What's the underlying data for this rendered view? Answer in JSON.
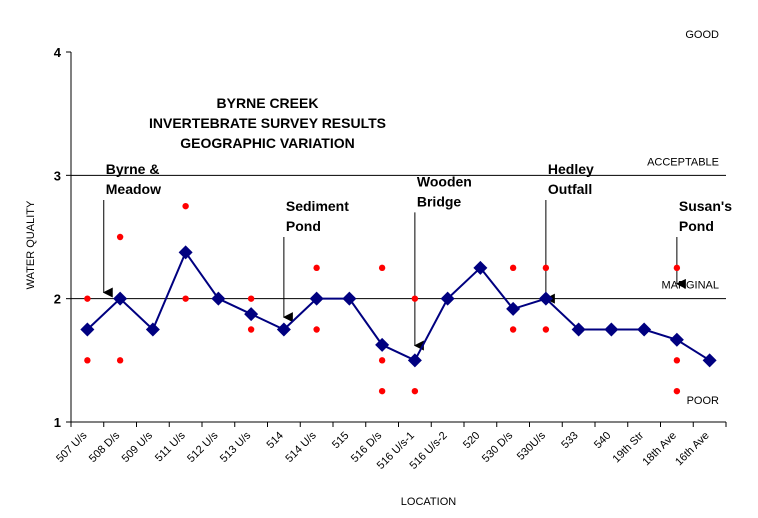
{
  "chart_data": {
    "type": "line",
    "title_lines": [
      "BYRNE CREEK",
      "INVERTEBRATE SURVEY RESULTS",
      "GEOGRAPHIC VARIATION"
    ],
    "xlabel": "LOCATION",
    "ylabel": "WATER QUALITY",
    "ylim": [
      1,
      4
    ],
    "yticks": [
      "1",
      "2",
      "3",
      "4"
    ],
    "grid": "horizontal lines at 2 and 3",
    "categories": [
      "507 U/s",
      "508 D/s",
      "509 U/s",
      "511 U/s",
      "512 U/s",
      "513 U/s",
      "514",
      "514 U/s",
      "515",
      "516 D/s",
      "516 U/s-1",
      "516 U/s-2",
      "520",
      "530 D/s",
      "530U/s",
      "533",
      "540",
      "19th Str",
      "18th Ave",
      "16th Ave"
    ],
    "series": [
      {
        "values": [
          1.75,
          2.0,
          1.75,
          2.375,
          2.0,
          1.875,
          1.75,
          2.0,
          2.0,
          1.625,
          1.5,
          2.0,
          2.25,
          1.917,
          2.0,
          1.75,
          1.75,
          1.75,
          1.667,
          1.5
        ],
        "color": "#000080",
        "marker": "diamond"
      },
      {
        "color": "#ff0000",
        "marker": "dot",
        "points": [
          [
            0,
            2.0
          ],
          [
            0,
            1.5
          ],
          [
            1,
            2.5
          ],
          [
            1,
            1.5
          ],
          [
            3,
            2.75
          ],
          [
            3,
            2.0
          ],
          [
            5,
            2.0
          ],
          [
            5,
            1.75
          ],
          [
            7,
            2.25
          ],
          [
            7,
            1.75
          ],
          [
            9,
            2.25
          ],
          [
            9,
            1.5
          ],
          [
            9,
            1.25
          ],
          [
            10,
            2.0
          ],
          [
            10,
            1.25
          ],
          [
            13,
            2.25
          ],
          [
            13,
            1.75
          ],
          [
            14,
            2.25
          ],
          [
            14,
            1.75
          ],
          [
            18,
            2.25
          ],
          [
            18,
            1.5
          ],
          [
            18,
            1.25
          ]
        ]
      }
    ],
    "levels": [
      {
        "label": "GOOD",
        "y": 4.0
      },
      {
        "label": "ACCEPTABLE",
        "y": 3.0
      },
      {
        "label": "MARGINAL",
        "y": 2.0
      },
      {
        "label": "POOR",
        "y": 1.0
      }
    ],
    "annotations": [
      {
        "lines": [
          "Byrne &",
          "Meadow"
        ],
        "x": 0.5,
        "y_from": 2.8,
        "y_to": 2.05
      },
      {
        "lines": [
          "Sediment",
          "Pond"
        ],
        "x": 6.0,
        "y_from": 2.5,
        "y_to": 1.85
      },
      {
        "lines": [
          "Wooden",
          "Bridge"
        ],
        "x": 10.0,
        "y_from": 2.7,
        "y_to": 1.62
      },
      {
        "lines": [
          "Hedley",
          "Outfall"
        ],
        "x": 14.0,
        "y_from": 2.8,
        "y_to": 2.0
      },
      {
        "lines": [
          "Susan's",
          "Pond"
        ],
        "x": 18.0,
        "y_from": 2.5,
        "y_to": 2.12
      }
    ],
    "colors": {
      "line": "#000080",
      "marker": "#000080",
      "dots": "#ff0000",
      "grid": "#000000"
    }
  }
}
